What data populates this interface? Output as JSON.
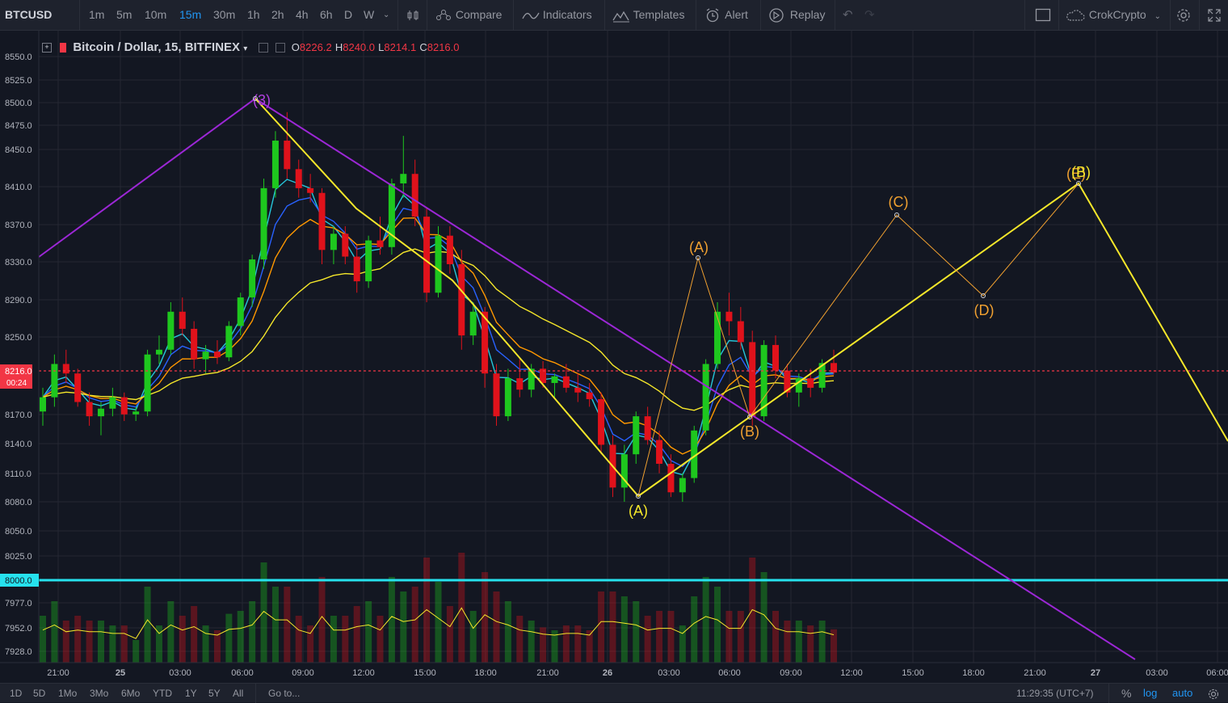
{
  "toolbar": {
    "symbol": "BTCUSD",
    "intervals": [
      "1m",
      "5m",
      "10m",
      "15m",
      "30m",
      "1h",
      "2h",
      "4h",
      "6h",
      "D",
      "W"
    ],
    "active_interval": "15m",
    "compare_label": "Compare",
    "indicators_label": "Indicators",
    "templates_label": "Templates",
    "alert_label": "Alert",
    "replay_label": "Replay",
    "account_label": "CrokCrypto"
  },
  "legend": {
    "title": "Bitcoin / Dollar, 15, BITFINEX",
    "open_label": "O",
    "open": "8226.2",
    "high_label": "H",
    "high": "8240.0",
    "low_label": "L",
    "low": "8214.1",
    "close_label": "C",
    "close": "8216.0"
  },
  "price_axis": {
    "ticks": [
      "8550.0",
      "8525.0",
      "8500.0",
      "8475.0",
      "8450.0",
      "8410.0",
      "8370.0",
      "8330.0",
      "8290.0",
      "8250.0",
      "8170.0",
      "8140.0",
      "8110.0",
      "8080.0",
      "8050.0",
      "8025.0",
      "7977.0",
      "7952.0",
      "7928.0"
    ],
    "current_price": "8216.0",
    "countdown": "00:24",
    "level_label": "8000.0"
  },
  "time_axis": {
    "ticks": [
      "21:00",
      "25",
      "03:00",
      "06:00",
      "09:00",
      "12:00",
      "15:00",
      "18:00",
      "21:00",
      "26",
      "03:00",
      "06:00",
      "09:00",
      "12:00",
      "15:00",
      "18:00",
      "21:00",
      "27",
      "03:00",
      "06:00"
    ]
  },
  "wave_labels": {
    "three": "(3)",
    "a_low": "(A)",
    "a_high": "(A)",
    "b_low": "(B)",
    "c": "(C)",
    "d": "(D)",
    "e": "(E)",
    "b_top": "(B)"
  },
  "bottombar": {
    "ranges": [
      "1D",
      "5D",
      "1Mo",
      "3Mo",
      "6Mo",
      "YTD",
      "1Y",
      "5Y",
      "All"
    ],
    "goto_label": "Go to...",
    "clock": "11:29:35 (UTC+7)",
    "percent_label": "%",
    "log_label": "log",
    "auto_label": "auto"
  },
  "colors": {
    "bg": "#131722",
    "up": "#26a69a",
    "candle_up": "#1ec71e",
    "candle_down": "#e0121b",
    "purple_line": "#9c27d6",
    "yellow_line": "#f5e72a",
    "orange_wave": "#f0a030",
    "cyan_level": "#26e2ee",
    "current_price": "#f23645"
  },
  "chart_data": {
    "type": "candlestick",
    "symbol": "BTCUSD",
    "interval": "15",
    "exchange": "BITFINEX",
    "ohlc_last": {
      "open": 8226.2,
      "high": 8240.0,
      "low": 8214.1,
      "close": 8216.0
    },
    "price_range": [
      7915,
      8565
    ],
    "horizontal_levels": [
      8000.0
    ],
    "candles": [
      [
        8175,
        8200,
        8160,
        8190
      ],
      [
        8190,
        8235,
        8180,
        8225
      ],
      [
        8225,
        8240,
        8205,
        8215
      ],
      [
        8215,
        8220,
        8180,
        8185
      ],
      [
        8185,
        8195,
        8160,
        8170
      ],
      [
        8170,
        8185,
        8150,
        8178
      ],
      [
        8178,
        8200,
        8170,
        8190
      ],
      [
        8190,
        8195,
        8165,
        8172
      ],
      [
        8172,
        8180,
        8165,
        8175
      ],
      [
        8175,
        8240,
        8170,
        8235
      ],
      [
        8235,
        8255,
        8225,
        8240
      ],
      [
        8240,
        8290,
        8235,
        8280
      ],
      [
        8280,
        8295,
        8255,
        8262
      ],
      [
        8262,
        8270,
        8220,
        8230
      ],
      [
        8230,
        8245,
        8215,
        8238
      ],
      [
        8238,
        8250,
        8225,
        8232
      ],
      [
        8232,
        8270,
        8228,
        8265
      ],
      [
        8265,
        8300,
        8255,
        8295
      ],
      [
        8295,
        8340,
        8285,
        8335
      ],
      [
        8335,
        8420,
        8325,
        8410
      ],
      [
        8410,
        8470,
        8400,
        8460
      ],
      [
        8460,
        8490,
        8420,
        8430
      ],
      [
        8430,
        8440,
        8400,
        8410
      ],
      [
        8410,
        8425,
        8395,
        8405
      ],
      [
        8405,
        8410,
        8330,
        8345
      ],
      [
        8345,
        8370,
        8330,
        8362
      ],
      [
        8362,
        8370,
        8330,
        8338
      ],
      [
        8338,
        8350,
        8300,
        8312
      ],
      [
        8312,
        8360,
        8305,
        8355
      ],
      [
        8355,
        8380,
        8340,
        8348
      ],
      [
        8348,
        8420,
        8340,
        8415
      ],
      [
        8415,
        8465,
        8400,
        8425
      ],
      [
        8425,
        8440,
        8370,
        8380
      ],
      [
        8380,
        8390,
        8290,
        8300
      ],
      [
        8300,
        8370,
        8295,
        8360
      ],
      [
        8360,
        8370,
        8320,
        8330
      ],
      [
        8330,
        8345,
        8240,
        8255
      ],
      [
        8255,
        8290,
        8245,
        8280
      ],
      [
        8280,
        8285,
        8200,
        8215
      ],
      [
        8215,
        8225,
        8160,
        8170
      ],
      [
        8170,
        8220,
        8165,
        8210
      ],
      [
        8210,
        8230,
        8190,
        8198
      ],
      [
        8198,
        8225,
        8190,
        8220
      ],
      [
        8220,
        8228,
        8200,
        8205
      ],
      [
        8205,
        8215,
        8190,
        8212
      ],
      [
        8212,
        8225,
        8195,
        8200
      ],
      [
        8200,
        8215,
        8185,
        8195
      ],
      [
        8195,
        8205,
        8180,
        8188
      ],
      [
        8188,
        8195,
        8130,
        8140
      ],
      [
        8140,
        8150,
        8085,
        8095
      ],
      [
        8095,
        8140,
        8080,
        8130
      ],
      [
        8130,
        8175,
        8120,
        8170
      ],
      [
        8170,
        8180,
        8140,
        8145
      ],
      [
        8145,
        8155,
        8110,
        8120
      ],
      [
        8120,
        8130,
        8085,
        8090
      ],
      [
        8090,
        8110,
        8080,
        8105
      ],
      [
        8105,
        8160,
        8100,
        8155
      ],
      [
        8155,
        8230,
        8150,
        8225
      ],
      [
        8225,
        8290,
        8220,
        8280
      ],
      [
        8280,
        8300,
        8255,
        8270
      ],
      [
        8270,
        8285,
        8240,
        8248
      ],
      [
        8248,
        8260,
        8160,
        8170
      ],
      [
        8170,
        8250,
        8165,
        8245
      ],
      [
        8245,
        8255,
        8210,
        8218
      ],
      [
        8218,
        8225,
        8190,
        8195
      ],
      [
        8195,
        8215,
        8180,
        8210
      ],
      [
        8210,
        8220,
        8190,
        8200
      ],
      [
        8200,
        8230,
        8195,
        8226
      ],
      [
        8226,
        8240,
        8214,
        8216
      ]
    ],
    "wave_points": [
      {
        "label": "(3)",
        "price": 8495
      },
      {
        "label": "(A)",
        "price": 8080
      },
      {
        "label": "(A)",
        "price": 8335
      },
      {
        "label": "(B)",
        "price": 8160
      },
      {
        "label": "(C)",
        "price": 8385
      },
      {
        "label": "(D)",
        "price": 8285
      },
      {
        "label": "(E)",
        "price": 8415
      },
      {
        "label": "(B)",
        "price": 8415
      }
    ]
  }
}
